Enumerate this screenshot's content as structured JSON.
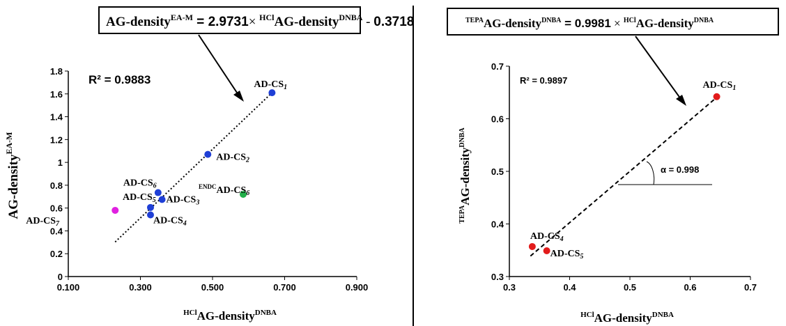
{
  "chart_data": [
    {
      "type": "scatter",
      "equation": {
        "lhs": "AG-density",
        "lhs_sup": "EA-M",
        "eq": " = ",
        "coef": "2.9731",
        "times": "× ",
        "rhs_pre": "HCl",
        "rhs": "AG-density",
        "rhs_sup": "DNBA",
        "tail": " - ",
        "intercept": "0.3718"
      },
      "r2": "R² = 0.9883",
      "xlabel": {
        "pre": "HCl",
        "main": "AG-density",
        "sup": "DNBA"
      },
      "ylabel": {
        "pre": "",
        "main": "AG-density",
        "sup": "EA-M"
      },
      "xlim": [
        0.1,
        0.9
      ],
      "ylim": [
        0,
        1.8
      ],
      "x_ticks": [
        "0.100",
        "0.300",
        "0.500",
        "0.700",
        "0.900"
      ],
      "x_tick_values": [
        0.1,
        0.3,
        0.5,
        0.7,
        0.9
      ],
      "y_ticks": [
        "0",
        "0.2",
        "0.4",
        "0.6",
        "0.8",
        "1",
        "1.2",
        "1.4",
        "1.6",
        "1.8"
      ],
      "y_tick_values": [
        0,
        0.2,
        0.4,
        0.6,
        0.8,
        1.0,
        1.2,
        1.4,
        1.6,
        1.8
      ],
      "trendline": {
        "x": [
          0.23,
          0.67
        ]
      },
      "series": [
        {
          "color": "#1f3fd6",
          "points": [
            {
              "x": 0.665,
              "y": 1.61,
              "label": "AD-CS",
              "sub": "1",
              "pre": ""
            },
            {
              "x": 0.487,
              "y": 1.07,
              "label": "AD-CS",
              "sub": "2",
              "pre": ""
            },
            {
              "x": 0.36,
              "y": 0.675,
              "label": "AD-CS",
              "sub": "3",
              "pre": ""
            },
            {
              "x": 0.328,
              "y": 0.54,
              "label": "AD-CS",
              "sub": "4",
              "pre": ""
            },
            {
              "x": 0.328,
              "y": 0.605,
              "label": "AD-CS",
              "sub": "5",
              "pre": ""
            },
            {
              "x": 0.349,
              "y": 0.735,
              "label": "AD-CS",
              "sub": "6",
              "pre": ""
            }
          ]
        },
        {
          "color": "#e020e0",
          "points": [
            {
              "x": 0.23,
              "y": 0.58,
              "label": "AD-CS",
              "sub": "7",
              "pre": ""
            }
          ]
        },
        {
          "color": "#22b04a",
          "points": [
            {
              "x": 0.585,
              "y": 0.72,
              "label": "AD-CS",
              "sub": "6",
              "pre": "ENDC"
            }
          ]
        }
      ]
    },
    {
      "type": "scatter",
      "equation": {
        "lhs_pre": "TEPA",
        "lhs": "AG-density",
        "lhs_sup": "DNBA",
        "eq": " = ",
        "coef": "0.9981",
        "times": " × ",
        "rhs_pre": "HCl",
        "rhs": "AG-density",
        "rhs_sup": "DNBA"
      },
      "r2": "R² = 0.9897",
      "angle_label": "α = 0.998",
      "xlabel": {
        "pre": "HCl",
        "main": "AG-density",
        "sup": "DNBA"
      },
      "ylabel": {
        "pre": "TEPA",
        "main": "AG-density",
        "sup": "DNBA"
      },
      "xlim": [
        0.3,
        0.7
      ],
      "ylim": [
        0.3,
        0.7
      ],
      "x_ticks": [
        "0.3",
        "0.4",
        "0.5",
        "0.6",
        "0.7"
      ],
      "x_tick_values": [
        0.3,
        0.4,
        0.5,
        0.6,
        0.7
      ],
      "y_ticks": [
        "0.3",
        "0.4",
        "0.5",
        "0.6",
        "0.7"
      ],
      "y_tick_values": [
        0.3,
        0.4,
        0.5,
        0.6,
        0.7
      ],
      "trendline": {
        "x": [
          0.335,
          0.645
        ]
      },
      "series": [
        {
          "color": "#e21b1b",
          "points": [
            {
              "x": 0.644,
              "y": 0.642,
              "label": "AD-CS",
              "sub": "1",
              "pre": ""
            },
            {
              "x": 0.338,
              "y": 0.357,
              "label": "AD-CS",
              "sub": "4",
              "pre": ""
            },
            {
              "x": 0.362,
              "y": 0.349,
              "label": "AD-CS",
              "sub": "5",
              "pre": ""
            }
          ]
        }
      ]
    }
  ]
}
